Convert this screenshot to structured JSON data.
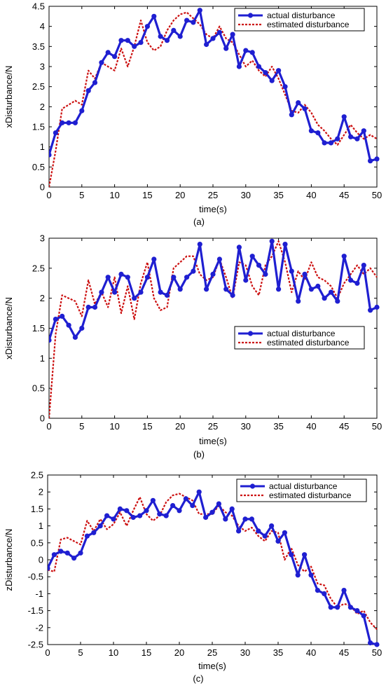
{
  "colors": {
    "actual": "#1f1fd1",
    "estimated": "#cc1111",
    "axis": "#000000",
    "background": "#ffffff"
  },
  "chart_data": [
    {
      "type": "line",
      "caption": "(a)",
      "xlabel": "time(s)",
      "ylabel": "xDisturbance/N",
      "xlim": [
        0,
        50
      ],
      "ylim": [
        0,
        4.5
      ],
      "xticks": [
        0,
        5,
        10,
        15,
        20,
        25,
        30,
        35,
        40,
        45,
        50
      ],
      "yticks": [
        0,
        0.5,
        1,
        1.5,
        2,
        2.5,
        3,
        3.5,
        4,
        4.5
      ],
      "grid": false,
      "legend_position": "top-right",
      "series": [
        {
          "name": "actual disturbance",
          "style": "solid-with-markers",
          "x": [
            0,
            1,
            2,
            3,
            4,
            5,
            6,
            7,
            8,
            9,
            10,
            11,
            12,
            13,
            14,
            15,
            16,
            17,
            18,
            19,
            20,
            21,
            22,
            23,
            24,
            25,
            26,
            27,
            28,
            29,
            30,
            31,
            32,
            33,
            34,
            35,
            36,
            37,
            38,
            39,
            40,
            41,
            42,
            43,
            44,
            45,
            46,
            47,
            48,
            49,
            50
          ],
          "y": [
            0.8,
            1.35,
            1.6,
            1.6,
            1.6,
            1.9,
            2.4,
            2.6,
            3.1,
            3.35,
            3.25,
            3.65,
            3.65,
            3.5,
            3.6,
            4.0,
            4.25,
            3.75,
            3.65,
            3.9,
            3.75,
            4.15,
            4.1,
            4.4,
            3.55,
            3.7,
            3.85,
            3.45,
            3.8,
            3.0,
            3.4,
            3.35,
            3.0,
            2.85,
            2.65,
            2.9,
            2.5,
            1.8,
            2.1,
            1.95,
            1.4,
            1.35,
            1.1,
            1.1,
            1.2,
            1.75,
            1.25,
            1.2,
            1.4,
            0.65,
            0.7
          ]
        },
        {
          "name": "estimated disturbance",
          "style": "dotted",
          "x": [
            0,
            1,
            2,
            3,
            4,
            5,
            6,
            7,
            8,
            9,
            10,
            11,
            12,
            13,
            14,
            15,
            16,
            17,
            18,
            19,
            20,
            21,
            22,
            23,
            24,
            25,
            26,
            27,
            28,
            29,
            30,
            31,
            32,
            33,
            34,
            35,
            36,
            37,
            38,
            39,
            40,
            41,
            42,
            43,
            44,
            45,
            46,
            47,
            48,
            49,
            50
          ],
          "y": [
            0.0,
            0.9,
            1.95,
            2.05,
            2.15,
            2.05,
            2.9,
            2.7,
            3.1,
            3.0,
            2.9,
            3.45,
            3.0,
            3.5,
            4.15,
            3.6,
            3.4,
            3.5,
            3.9,
            4.15,
            4.3,
            4.35,
            4.2,
            4.05,
            3.8,
            3.7,
            4.0,
            3.7,
            3.6,
            3.3,
            3.0,
            3.15,
            2.9,
            2.75,
            3.0,
            2.7,
            2.3,
            1.9,
            1.85,
            2.05,
            1.85,
            1.55,
            1.4,
            1.2,
            1.05,
            1.3,
            1.55,
            1.35,
            1.2,
            1.3,
            1.2
          ]
        }
      ]
    },
    {
      "type": "line",
      "caption": "(b)",
      "xlabel": "time(s)",
      "ylabel": "xDisturbance/N",
      "xlim": [
        0,
        50
      ],
      "ylim": [
        0,
        3
      ],
      "xticks": [
        0,
        5,
        10,
        15,
        20,
        25,
        30,
        35,
        40,
        45,
        50
      ],
      "yticks": [
        0,
        0.5,
        1,
        1.5,
        2,
        2.5,
        3
      ],
      "grid": false,
      "legend_position": "middle-right",
      "series": [
        {
          "name": "actual disturbance",
          "style": "solid-with-markers",
          "x": [
            0,
            1,
            2,
            3,
            4,
            5,
            6,
            7,
            8,
            9,
            10,
            11,
            12,
            13,
            14,
            15,
            16,
            17,
            18,
            19,
            20,
            21,
            22,
            23,
            24,
            25,
            26,
            27,
            28,
            29,
            30,
            31,
            32,
            33,
            34,
            35,
            36,
            37,
            38,
            39,
            40,
            41,
            42,
            43,
            44,
            45,
            46,
            47,
            48,
            49,
            50
          ],
          "y": [
            1.3,
            1.65,
            1.7,
            1.55,
            1.35,
            1.5,
            1.85,
            1.85,
            2.1,
            2.35,
            2.1,
            2.4,
            2.35,
            2.0,
            2.1,
            2.35,
            2.65,
            2.1,
            2.05,
            2.35,
            2.15,
            2.35,
            2.45,
            2.9,
            2.15,
            2.4,
            2.65,
            2.15,
            2.05,
            2.85,
            2.3,
            2.7,
            2.55,
            2.4,
            2.95,
            2.15,
            2.9,
            2.45,
            1.95,
            2.4,
            2.15,
            2.2,
            2.0,
            2.1,
            1.95,
            2.7,
            2.3,
            2.25,
            2.55,
            1.8,
            1.85
          ]
        },
        {
          "name": "estimated disturbance",
          "style": "dotted",
          "x": [
            0,
            1,
            2,
            3,
            4,
            5,
            6,
            7,
            8,
            9,
            10,
            11,
            12,
            13,
            14,
            15,
            16,
            17,
            18,
            19,
            20,
            21,
            22,
            23,
            24,
            25,
            26,
            27,
            28,
            29,
            30,
            31,
            32,
            33,
            34,
            35,
            36,
            37,
            38,
            39,
            40,
            41,
            42,
            43,
            44,
            45,
            46,
            47,
            48,
            49,
            50
          ],
          "y": [
            0.0,
            1.4,
            2.05,
            2.0,
            1.95,
            1.7,
            2.3,
            1.9,
            2.1,
            1.85,
            2.35,
            1.75,
            2.2,
            1.65,
            2.25,
            2.6,
            2.0,
            1.8,
            1.85,
            2.5,
            2.6,
            2.7,
            2.7,
            2.4,
            2.3,
            2.35,
            2.65,
            2.35,
            2.0,
            2.6,
            2.55,
            2.2,
            2.05,
            2.55,
            2.7,
            2.95,
            2.6,
            2.1,
            2.45,
            2.3,
            2.6,
            2.35,
            2.3,
            2.2,
            2.0,
            2.25,
            2.4,
            2.55,
            2.4,
            2.5,
            2.35
          ]
        }
      ]
    },
    {
      "type": "line",
      "caption": "(c)",
      "xlabel": "time(s)",
      "ylabel": "zDisturbance/N",
      "xlim": [
        0,
        50
      ],
      "ylim": [
        -2.5,
        2.5
      ],
      "xticks": [
        0,
        5,
        10,
        15,
        20,
        25,
        30,
        35,
        40,
        45,
        50
      ],
      "yticks": [
        -2.5,
        -2,
        -1.5,
        -1,
        -0.5,
        0,
        0.5,
        1,
        1.5,
        2,
        2.5
      ],
      "grid": false,
      "legend_position": "top-right",
      "series": [
        {
          "name": "actual disturbance",
          "style": "solid-with-markers",
          "x": [
            0,
            1,
            2,
            3,
            4,
            5,
            6,
            7,
            8,
            9,
            10,
            11,
            12,
            13,
            14,
            15,
            16,
            17,
            18,
            19,
            20,
            21,
            22,
            23,
            24,
            25,
            26,
            27,
            28,
            29,
            30,
            31,
            32,
            33,
            34,
            35,
            36,
            37,
            38,
            39,
            40,
            41,
            42,
            43,
            44,
            45,
            46,
            47,
            48,
            49,
            50
          ],
          "y": [
            -0.25,
            0.15,
            0.25,
            0.2,
            0.05,
            0.2,
            0.7,
            0.8,
            1.0,
            1.3,
            1.2,
            1.5,
            1.45,
            1.25,
            1.3,
            1.45,
            1.75,
            1.35,
            1.3,
            1.6,
            1.45,
            1.8,
            1.6,
            2.0,
            1.25,
            1.4,
            1.65,
            1.2,
            1.5,
            0.85,
            1.2,
            1.2,
            0.85,
            0.7,
            1.0,
            0.55,
            0.8,
            0.15,
            -0.45,
            0.15,
            -0.45,
            -0.9,
            -1.0,
            -1.4,
            -1.4,
            -0.9,
            -1.4,
            -1.5,
            -1.65,
            -2.45,
            -2.5
          ]
        },
        {
          "name": "estimated disturbance",
          "style": "dotted",
          "x": [
            0,
            1,
            2,
            3,
            4,
            5,
            6,
            7,
            8,
            9,
            10,
            11,
            12,
            13,
            14,
            15,
            16,
            17,
            18,
            19,
            20,
            21,
            22,
            23,
            24,
            25,
            26,
            27,
            28,
            29,
            30,
            31,
            32,
            33,
            34,
            35,
            36,
            37,
            38,
            39,
            40,
            41,
            42,
            43,
            44,
            45,
            46,
            47,
            48,
            49,
            50
          ],
          "y": [
            -0.3,
            -0.35,
            0.6,
            0.65,
            0.55,
            0.45,
            1.15,
            0.85,
            1.2,
            0.9,
            1.05,
            1.4,
            1.0,
            1.45,
            1.85,
            1.35,
            1.15,
            1.3,
            1.7,
            1.9,
            1.95,
            1.85,
            1.75,
            1.35,
            1.35,
            1.35,
            1.6,
            1.4,
            1.3,
            1.0,
            0.85,
            0.95,
            0.7,
            0.55,
            0.85,
            0.8,
            0.0,
            0.35,
            -0.15,
            -0.35,
            -0.2,
            -0.7,
            -0.75,
            -1.15,
            -1.4,
            -1.3,
            -1.35,
            -1.6,
            -1.5,
            -1.85,
            -2.05
          ]
        }
      ]
    }
  ]
}
